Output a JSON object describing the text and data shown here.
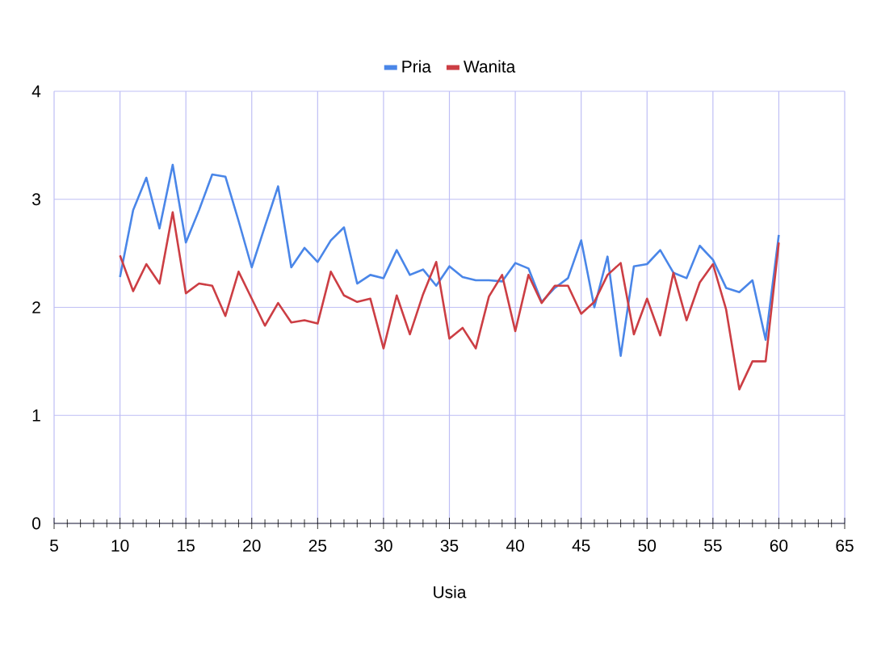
{
  "chart_data": {
    "type": "line",
    "xlabel": "Usia",
    "x": [
      10,
      11,
      12,
      13,
      14,
      15,
      16,
      17,
      18,
      19,
      20,
      21,
      22,
      23,
      24,
      25,
      26,
      27,
      28,
      29,
      30,
      31,
      32,
      33,
      34,
      35,
      36,
      37,
      38,
      39,
      40,
      41,
      42,
      43,
      44,
      45,
      46,
      47,
      48,
      49,
      50,
      51,
      52,
      53,
      54,
      55,
      56,
      57,
      58,
      59,
      60
    ],
    "series": [
      {
        "name": "Pria",
        "color": "#4a86e8",
        "values": [
          2.28,
          2.9,
          3.2,
          2.73,
          3.32,
          2.6,
          2.9,
          3.23,
          3.21,
          2.8,
          2.37,
          2.75,
          3.12,
          2.37,
          2.55,
          2.42,
          2.62,
          2.74,
          2.22,
          2.3,
          2.27,
          2.53,
          2.3,
          2.35,
          2.2,
          2.38,
          2.28,
          2.25,
          2.25,
          2.24,
          2.41,
          2.36,
          2.05,
          2.18,
          2.27,
          2.62,
          2.0,
          2.47,
          1.55,
          2.38,
          2.4,
          2.53,
          2.32,
          2.27,
          2.57,
          2.44,
          2.18,
          2.14,
          2.25,
          1.7,
          2.67
        ]
      },
      {
        "name": "Wanita",
        "color": "#cc3e44",
        "values": [
          2.48,
          2.15,
          2.4,
          2.22,
          2.88,
          2.13,
          2.22,
          2.2,
          1.92,
          2.33,
          2.08,
          1.83,
          2.04,
          1.86,
          1.88,
          1.85,
          2.33,
          2.11,
          2.05,
          2.08,
          1.62,
          2.11,
          1.75,
          2.12,
          2.42,
          1.71,
          1.81,
          1.62,
          2.1,
          2.3,
          1.78,
          2.3,
          2.04,
          2.2,
          2.2,
          1.94,
          2.05,
          2.3,
          2.41,
          1.75,
          2.08,
          1.74,
          2.32,
          1.88,
          2.23,
          2.4,
          1.98,
          1.24,
          1.5,
          1.5,
          2.6
        ]
      }
    ],
    "xlim": [
      5,
      65
    ],
    "ylim": [
      0,
      4
    ],
    "xticks": [
      5,
      10,
      15,
      20,
      25,
      30,
      35,
      40,
      45,
      50,
      55,
      60,
      65
    ],
    "yticks": [
      0,
      1,
      2,
      3,
      4
    ],
    "grid": true,
    "legend": "top"
  }
}
